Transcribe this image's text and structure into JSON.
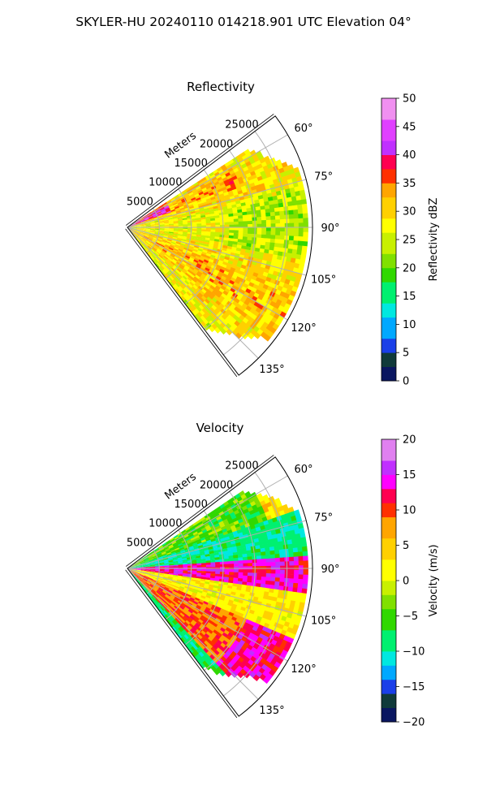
{
  "figure": {
    "suptitle": "SKYLER-HU  20240110  014218.901 UTC Elevation 04°"
  },
  "chart_data": [
    {
      "type": "heatmap",
      "title": "Reflectivity",
      "projection": "polar-sector",
      "azimuth_range_deg": [
        53,
        143
      ],
      "range_max_m": 29000,
      "radial_unit_label": "Meters",
      "range_ticks": [
        "5000",
        "10000",
        "15000",
        "20000",
        "25000"
      ],
      "range_tick_values": [
        5000,
        10000,
        15000,
        20000,
        25000
      ],
      "azimuth_ticks": [
        "60°",
        "75°",
        "90°",
        "105°",
        "120°",
        "135°"
      ],
      "azimuth_tick_values": [
        60,
        75,
        90,
        105,
        120,
        135
      ],
      "grid": true,
      "colorbar": {
        "label": "Reflectivity dBZ",
        "range": [
          0,
          50
        ],
        "ticks": [
          "0",
          "5",
          "10",
          "15",
          "20",
          "25",
          "30",
          "35",
          "40",
          "45",
          "50"
        ],
        "tick_values": [
          0,
          5,
          10,
          15,
          20,
          25,
          30,
          35,
          40,
          45,
          50
        ],
        "stops": [
          [
            0,
            "#0a1660"
          ],
          [
            2.5,
            "#103a3a"
          ],
          [
            5,
            "#1a3fe8"
          ],
          [
            8,
            "#00a8ff"
          ],
          [
            11,
            "#00e8e0"
          ],
          [
            14,
            "#00f070"
          ],
          [
            17,
            "#30d800"
          ],
          [
            20,
            "#80e000"
          ],
          [
            23,
            "#c8f000"
          ],
          [
            26,
            "#ffff00"
          ],
          [
            29,
            "#ffd000"
          ],
          [
            32,
            "#ffa500"
          ],
          [
            35,
            "#ff3000"
          ],
          [
            37,
            "#ff0050"
          ],
          [
            40,
            "#c030ff"
          ],
          [
            43,
            "#e040ff"
          ],
          [
            46,
            "#f090f0"
          ],
          [
            50,
            "#ffe8ff"
          ]
        ]
      },
      "field_description": "Widespread 25-32 dBZ echoes; 35-38 dBZ bands near 55-75 and 100-140 azimuth; 40+ dBZ near radar at north edge"
    },
    {
      "type": "heatmap",
      "title": "Velocity",
      "projection": "polar-sector",
      "azimuth_range_deg": [
        53,
        143
      ],
      "range_max_m": 29000,
      "radial_unit_label": "Meters",
      "range_ticks": [
        "5000",
        "10000",
        "15000",
        "20000",
        "25000"
      ],
      "range_tick_values": [
        5000,
        10000,
        15000,
        20000,
        25000
      ],
      "azimuth_ticks": [
        "60°",
        "75°",
        "90°",
        "105°",
        "120°",
        "135°"
      ],
      "azimuth_tick_values": [
        60,
        75,
        90,
        105,
        120,
        135
      ],
      "grid": true,
      "colorbar": {
        "label": "Velocity (m/s)",
        "range": [
          -20,
          20
        ],
        "ticks": [
          "−20",
          "−15",
          "−10",
          "−5",
          "0",
          "5",
          "10",
          "15",
          "20"
        ],
        "tick_values": [
          -20,
          -15,
          -10,
          -5,
          0,
          5,
          10,
          15,
          20
        ],
        "stops": [
          [
            -20,
            "#0a1660"
          ],
          [
            -18,
            "#103a3a"
          ],
          [
            -16,
            "#1a3fe8"
          ],
          [
            -14,
            "#00a8ff"
          ],
          [
            -12,
            "#00e8e0"
          ],
          [
            -10,
            "#00f070"
          ],
          [
            -7,
            "#30d800"
          ],
          [
            -4,
            "#80e000"
          ],
          [
            -2,
            "#c8f000"
          ],
          [
            0,
            "#ffff00"
          ],
          [
            3,
            "#ffd000"
          ],
          [
            6,
            "#ffa500"
          ],
          [
            9,
            "#ff3000"
          ],
          [
            11,
            "#ff0050"
          ],
          [
            13,
            "#ff00ff"
          ],
          [
            15,
            "#c030ff"
          ],
          [
            17,
            "#e080f0"
          ],
          [
            20,
            "#ffe8ff"
          ]
        ]
      },
      "field_description": "Inbound -5 to -10 m/s at 60-85 azimuth, outbound 12-16 m/s band near 92 azimuth, 0-5 m/s in 95-110 azimuth, outbound 8-15 m/s at 115-140 azimuth"
    }
  ]
}
